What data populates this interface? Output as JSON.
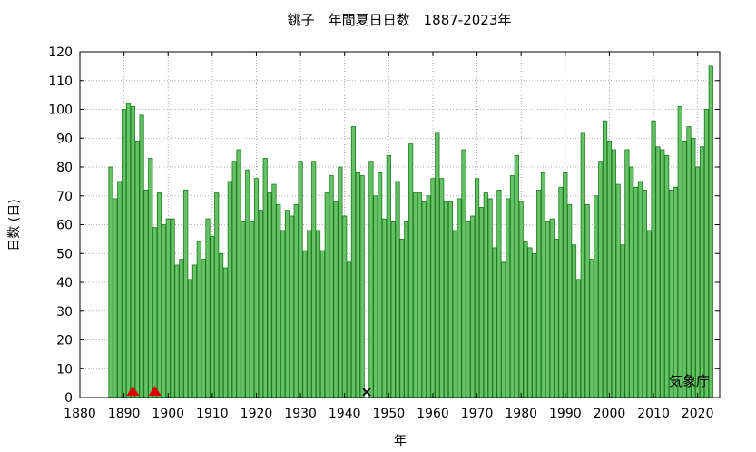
{
  "chart_data": {
    "type": "bar",
    "title": "銚子　年間夏日日数　1887-2023年",
    "xlabel": "年",
    "ylabel": "日数 (日)",
    "xlim": [
      1880,
      2025
    ],
    "ylim": [
      0,
      120
    ],
    "xticks": [
      1880,
      1890,
      1900,
      1910,
      1920,
      1930,
      1940,
      1950,
      1960,
      1970,
      1980,
      1990,
      2000,
      2010,
      2020
    ],
    "yticks": [
      0,
      10,
      20,
      30,
      40,
      50,
      60,
      70,
      80,
      90,
      100,
      110,
      120
    ],
    "grid": true,
    "bar_color": "#66c266",
    "bar_edge_color": "#1a7a1a",
    "start_year": 1887,
    "values": [
      80,
      69,
      75,
      100,
      102,
      101,
      89,
      98,
      72,
      83,
      59,
      71,
      60,
      62,
      62,
      46,
      48,
      72,
      41,
      46,
      54,
      48,
      62,
      56,
      71,
      50,
      45,
      75,
      82,
      86,
      61,
      79,
      61,
      76,
      65,
      83,
      71,
      74,
      67,
      58,
      65,
      63,
      67,
      82,
      51,
      58,
      82,
      58,
      51,
      71,
      77,
      68,
      80,
      63,
      47,
      94,
      78,
      77,
      0,
      82,
      70,
      78,
      62,
      84,
      61,
      75,
      55,
      61,
      88,
      71,
      71,
      68,
      70,
      76,
      92,
      76,
      68,
      68,
      58,
      69,
      86,
      61,
      63,
      76,
      66,
      71,
      69,
      52,
      72,
      47,
      69,
      77,
      84,
      68,
      54,
      52,
      50,
      72,
      78,
      61,
      62,
      55,
      73,
      78,
      67,
      53,
      41,
      92,
      67,
      48,
      70,
      82,
      96,
      89,
      86,
      74,
      53,
      86,
      80,
      73,
      75,
      72,
      58,
      96,
      87,
      86,
      84,
      72,
      73,
      101,
      89,
      94,
      90,
      80,
      87,
      100,
      115
    ],
    "markers": [
      {
        "year": 1892,
        "symbol": "triangle",
        "color": "#dd0000"
      },
      {
        "year": 1897,
        "symbol": "triangle",
        "color": "#dd0000"
      },
      {
        "year": 1945,
        "symbol": "cross",
        "color": "#000000"
      }
    ],
    "annotations": [
      "気象庁"
    ]
  }
}
